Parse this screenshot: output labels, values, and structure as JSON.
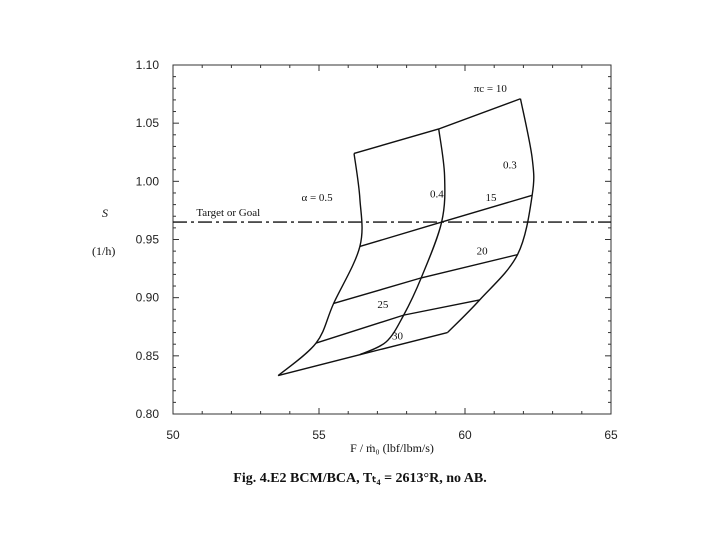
{
  "chart_data": {
    "type": "line",
    "caption": "Fig. 4.E2    BCM/BCA, Tₜ₄ = 2613°R, no AB.",
    "xlabel": "F / ṁ₀   (lbf/lbm/s)",
    "ylabel_symbol": "S",
    "ylabel_unit": "(1/h)",
    "xlim": [
      50,
      65
    ],
    "ylim": [
      0.8,
      1.1
    ],
    "xticks": [
      "50",
      "55",
      "60",
      "65"
    ],
    "yticks": [
      "0.80",
      "0.85",
      "0.90",
      "0.95",
      "1.00",
      "1.05",
      "1.10"
    ],
    "xtick_values": [
      50,
      55,
      60,
      65
    ],
    "ytick_values": [
      0.8,
      0.85,
      0.9,
      0.95,
      1.0,
      1.05,
      1.1
    ],
    "grid": false,
    "reference_line": {
      "label": "Target or Goal",
      "y": 0.965
    },
    "series": [
      {
        "name": "α = 0.5",
        "group": "alpha",
        "points": [
          [
            56.2,
            1.024
          ],
          [
            56.4,
            0.985
          ],
          [
            56.4,
            0.944
          ],
          [
            55.5,
            0.895
          ],
          [
            54.9,
            0.861
          ],
          [
            53.6,
            0.833
          ]
        ]
      },
      {
        "name": "0.4",
        "group": "alpha",
        "points": [
          [
            59.1,
            1.045
          ],
          [
            59.3,
            1.005
          ],
          [
            59.2,
            0.965
          ],
          [
            58.5,
            0.917
          ],
          [
            57.9,
            0.885
          ],
          [
            57.3,
            0.862
          ],
          [
            56.4,
            0.851
          ]
        ]
      },
      {
        "name": "0.3",
        "group": "alpha",
        "points": [
          [
            61.9,
            1.071
          ],
          [
            62.3,
            1.02
          ],
          [
            62.3,
            0.988
          ],
          [
            61.8,
            0.937
          ],
          [
            60.5,
            0.898
          ],
          [
            59.4,
            0.87
          ]
        ]
      },
      {
        "name": "πc = 10",
        "group": "pressure_ratio",
        "points": [
          [
            56.2,
            1.024
          ],
          [
            59.1,
            1.045
          ],
          [
            61.9,
            1.071
          ]
        ]
      },
      {
        "name": "15",
        "group": "pressure_ratio",
        "points": [
          [
            56.4,
            0.944
          ],
          [
            59.2,
            0.965
          ],
          [
            62.3,
            0.988
          ]
        ]
      },
      {
        "name": "20",
        "group": "pressure_ratio",
        "points": [
          [
            55.5,
            0.895
          ],
          [
            58.5,
            0.917
          ],
          [
            61.8,
            0.937
          ]
        ]
      },
      {
        "name": "25",
        "group": "pressure_ratio",
        "points": [
          [
            54.9,
            0.861
          ],
          [
            57.9,
            0.885
          ],
          [
            60.5,
            0.898
          ]
        ]
      },
      {
        "name": "30",
        "group": "pressure_ratio",
        "points": [
          [
            53.6,
            0.833
          ],
          [
            56.4,
            0.851
          ],
          [
            59.4,
            0.87
          ]
        ]
      }
    ],
    "annotations": [
      {
        "text": "πc = 10",
        "x": 60.3,
        "y": 1.077
      },
      {
        "text": "0.3",
        "x": 61.3,
        "y": 1.011
      },
      {
        "text": "15",
        "x": 60.7,
        "y": 0.983
      },
      {
        "text": "0.4",
        "x": 58.8,
        "y": 0.986
      },
      {
        "text": "α = 0.5",
        "x": 54.4,
        "y": 0.983
      },
      {
        "text": "20",
        "x": 60.4,
        "y": 0.937
      },
      {
        "text": "25",
        "x": 57.0,
        "y": 0.891
      },
      {
        "text": "30",
        "x": 57.5,
        "y": 0.864
      }
    ]
  }
}
